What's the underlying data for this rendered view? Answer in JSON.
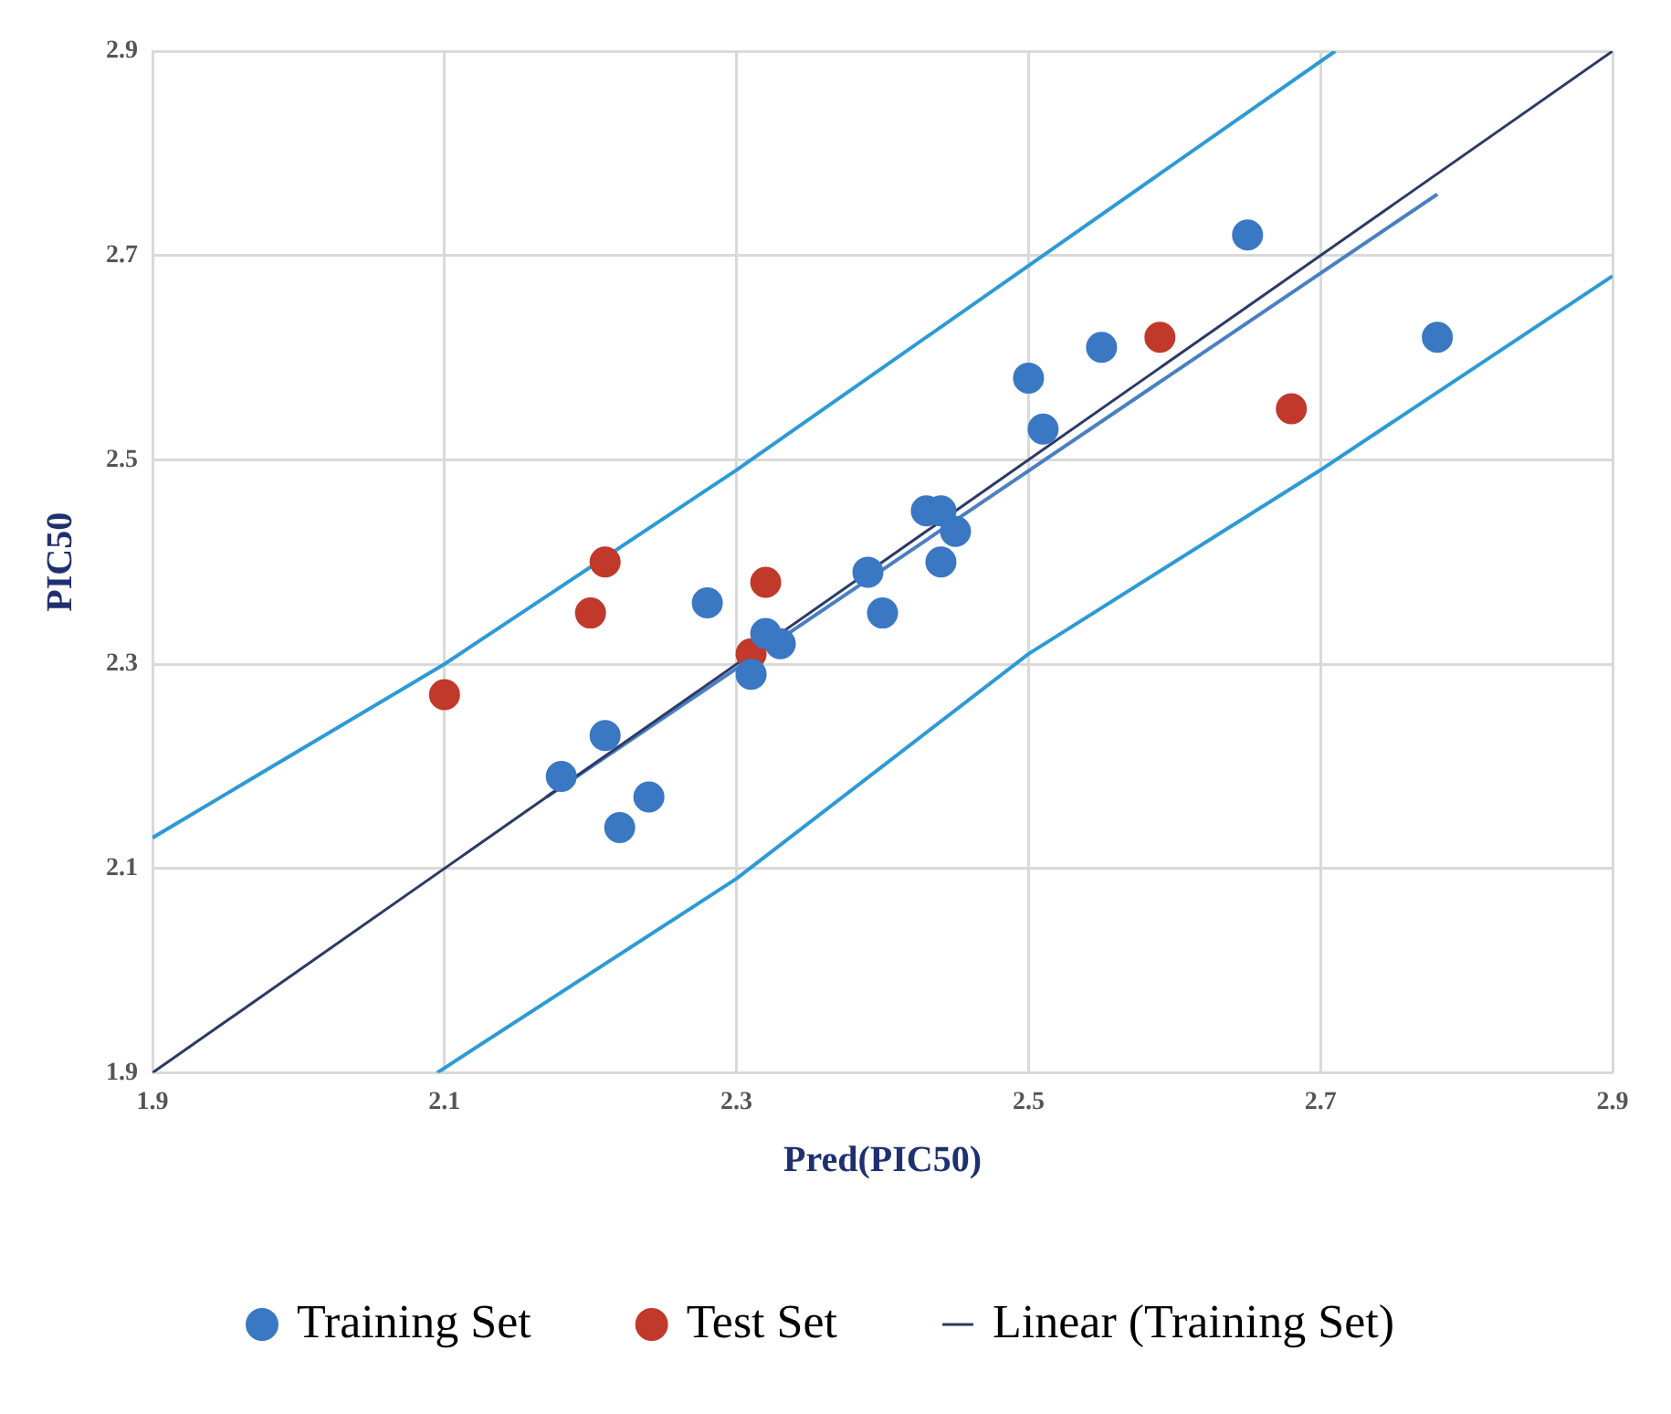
{
  "chart_data": {
    "type": "scatter",
    "xlabel": "Pred(PIC50)",
    "ylabel": "PIC50",
    "xlim": [
      1.9,
      2.9
    ],
    "ylim": [
      1.9,
      2.9
    ],
    "xticks": [
      1.9,
      2.1,
      2.3,
      2.5,
      2.7,
      2.9
    ],
    "yticks": [
      1.9,
      2.1,
      2.3,
      2.5,
      2.7,
      2.9
    ],
    "grid": true,
    "legend": "bottom",
    "series": [
      {
        "name": "Training Set",
        "marker": "circle",
        "color": "#3a78c3",
        "x": [
          2.18,
          2.21,
          2.22,
          2.24,
          2.28,
          2.32,
          2.33,
          2.31,
          2.39,
          2.4,
          2.43,
          2.44,
          2.45,
          2.44,
          2.5,
          2.51,
          2.55,
          2.65,
          2.78
        ],
        "values": [
          2.19,
          2.23,
          2.14,
          2.17,
          2.36,
          2.33,
          2.32,
          2.29,
          2.39,
          2.35,
          2.45,
          2.45,
          2.43,
          2.4,
          2.58,
          2.53,
          2.61,
          2.72,
          2.62
        ]
      },
      {
        "name": "Test Set",
        "marker": "circle",
        "color": "#c0392b",
        "x": [
          2.32,
          2.31,
          2.59,
          2.68,
          2.21,
          2.2,
          2.1
        ],
        "values": [
          2.38,
          2.31,
          2.62,
          2.55,
          2.4,
          2.35,
          2.27
        ]
      },
      {
        "name": "Linear (Training Set)",
        "type": "line",
        "marker": "none",
        "color": "#2b3a67",
        "x": [
          1.9,
          2.9
        ],
        "values": [
          1.9,
          2.9
        ]
      },
      {
        "type": "line",
        "marker": "none",
        "color": "#4a7fc1",
        "x": [
          2.17,
          2.78
        ],
        "values": [
          2.17,
          2.76
        ]
      },
      {
        "type": "line",
        "marker": "none",
        "color": "#2d9ad6",
        "x": [
          1.9,
          2.1,
          2.3,
          2.5,
          2.71
        ],
        "values": [
          2.13,
          2.3,
          2.49,
          2.69,
          2.9
        ]
      },
      {
        "type": "line",
        "marker": "none",
        "color": "#2d9ad6",
        "x": [
          2.095,
          2.3,
          2.5,
          2.7,
          2.9
        ],
        "values": [
          1.9,
          2.09,
          2.31,
          2.49,
          2.68
        ]
      }
    ]
  }
}
